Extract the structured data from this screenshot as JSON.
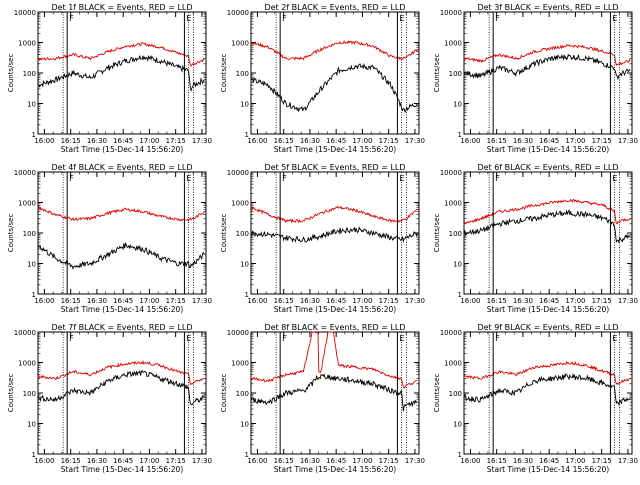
{
  "figure": {
    "x_start_label": "Start Time (15-Dec-14 15:56:20)",
    "y_label": "Counts/sec",
    "event_color": "#000000",
    "lld_color": "#e00000",
    "marker_labels": [
      "F",
      "E"
    ]
  },
  "chart_data": [
    {
      "type": "line",
      "title": "Det 1f BLACK = Events, RED = LLD",
      "xlabel": "Start Time (15-Dec-14 15:56:20)",
      "ylabel": "Counts/sec",
      "y_scale": "log",
      "x_ticks": [
        "16:00",
        "16:15",
        "16:30",
        "16:45",
        "17:00",
        "17:15",
        "17:30"
      ],
      "y_ticks": [
        "1",
        "10",
        "100",
        "1000",
        "10000"
      ],
      "ylim": [
        1,
        10000
      ],
      "x_minutes": [
        0,
        10,
        20,
        30,
        40,
        50,
        60,
        70,
        80,
        86,
        87,
        89,
        95
      ],
      "markers": [
        {
          "time": "16:13",
          "label": "F"
        },
        {
          "time": "17:20",
          "label": "E"
        }
      ],
      "series": [
        {
          "name": "Events",
          "color": "#000000",
          "values": [
            40,
            60,
            100,
            70,
            150,
            250,
            350,
            250,
            150,
            120,
            30,
            40,
            60
          ]
        },
        {
          "name": "LLD",
          "color": "#e00000",
          "values": [
            280,
            300,
            400,
            300,
            500,
            750,
            900,
            700,
            450,
            350,
            180,
            200,
            280
          ]
        }
      ]
    },
    {
      "type": "line",
      "title": "Det 2f BLACK = Events, RED = LLD",
      "xlabel": "Start Time (15-Dec-14 15:56:20)",
      "ylabel": "Counts/sec",
      "y_scale": "log",
      "x_ticks": [
        "16:00",
        "16:15",
        "16:30",
        "16:45",
        "17:00",
        "17:15",
        "17:30"
      ],
      "y_ticks": [
        "1",
        "10",
        "100",
        "1000",
        "10000"
      ],
      "ylim": [
        1,
        10000
      ],
      "x_minutes": [
        0,
        10,
        20,
        30,
        40,
        50,
        60,
        70,
        80,
        86,
        87,
        89,
        95
      ],
      "markers": [
        {
          "time": "16:13",
          "label": "F"
        },
        {
          "time": "17:20",
          "label": "E"
        }
      ],
      "series": [
        {
          "name": "Events",
          "color": "#000000",
          "values": [
            60,
            40,
            10,
            6,
            30,
            120,
            170,
            150,
            40,
            8,
            6,
            7,
            10
          ]
        },
        {
          "name": "LLD",
          "color": "#e00000",
          "values": [
            1000,
            700,
            300,
            300,
            600,
            1000,
            1000,
            750,
            350,
            300,
            300,
            320,
            600
          ]
        }
      ]
    },
    {
      "type": "line",
      "title": "Det 3f BLACK = Events, RED = LLD",
      "xlabel": "Start Time (15-Dec-14 15:56:20)",
      "ylabel": "Counts/sec",
      "y_scale": "log",
      "x_ticks": [
        "16:00",
        "16:15",
        "16:30",
        "16:45",
        "17:00",
        "17:15",
        "17:30"
      ],
      "y_ticks": [
        "1",
        "10",
        "100",
        "1000",
        "10000"
      ],
      "ylim": [
        1,
        10000
      ],
      "x_minutes": [
        0,
        10,
        20,
        30,
        40,
        50,
        60,
        70,
        80,
        86,
        87,
        89,
        95
      ],
      "markers": [
        {
          "time": "16:13",
          "label": "F"
        },
        {
          "time": "17:20",
          "label": "E"
        }
      ],
      "series": [
        {
          "name": "Events",
          "color": "#000000",
          "values": [
            100,
            80,
            150,
            100,
            200,
            300,
            350,
            300,
            200,
            150,
            70,
            90,
            120
          ]
        },
        {
          "name": "LLD",
          "color": "#e00000",
          "values": [
            300,
            250,
            400,
            300,
            500,
            650,
            800,
            700,
            500,
            400,
            180,
            200,
            250
          ]
        }
      ]
    },
    {
      "type": "line",
      "title": "Det 4f BLACK = Events, RED = LLD",
      "xlabel": "Start Time (15-Dec-14 15:56:20)",
      "ylabel": "Counts/sec",
      "y_scale": "log",
      "x_ticks": [
        "16:00",
        "16:15",
        "16:30",
        "16:45",
        "17:00",
        "17:15",
        "17:30"
      ],
      "y_ticks": [
        "1",
        "10",
        "100",
        "1000",
        "10000"
      ],
      "ylim": [
        1,
        10000
      ],
      "x_minutes": [
        0,
        10,
        20,
        30,
        40,
        50,
        60,
        70,
        80,
        86,
        87,
        89,
        95
      ],
      "markers": [
        {
          "time": "16:13",
          "label": "F"
        },
        {
          "time": "17:20",
          "label": "E"
        }
      ],
      "series": [
        {
          "name": "Events",
          "color": "#000000",
          "values": [
            40,
            15,
            8,
            10,
            20,
            40,
            30,
            15,
            10,
            10,
            8,
            10,
            20
          ]
        },
        {
          "name": "LLD",
          "color": "#e00000",
          "values": [
            700,
            400,
            280,
            300,
            450,
            600,
            500,
            350,
            280,
            270,
            280,
            300,
            500
          ]
        }
      ]
    },
    {
      "type": "line",
      "title": "Det 5f BLACK = Events, RED = LLD",
      "xlabel": "Start Time (15-Dec-14 15:56:20)",
      "ylabel": "Counts/sec",
      "y_scale": "log",
      "x_ticks": [
        "16:00",
        "16:15",
        "16:30",
        "16:45",
        "17:00",
        "17:15",
        "17:30"
      ],
      "y_ticks": [
        "1",
        "10",
        "100",
        "1000",
        "10000"
      ],
      "ylim": [
        1,
        10000
      ],
      "x_minutes": [
        0,
        10,
        20,
        30,
        40,
        50,
        60,
        70,
        80,
        86,
        87,
        89,
        95
      ],
      "markers": [
        {
          "time": "16:13",
          "label": "F"
        },
        {
          "time": "17:20",
          "label": "E"
        }
      ],
      "series": [
        {
          "name": "Events",
          "color": "#000000",
          "values": [
            100,
            90,
            70,
            60,
            80,
            120,
            130,
            100,
            70,
            60,
            60,
            70,
            100
          ]
        },
        {
          "name": "LLD",
          "color": "#e00000",
          "values": [
            700,
            400,
            250,
            250,
            450,
            700,
            550,
            350,
            250,
            250,
            270,
            300,
            600
          ]
        }
      ]
    },
    {
      "type": "line",
      "title": "Det 6f BLACK = Events, RED = LLD",
      "xlabel": "Start Time (15-Dec-14 15:56:20)",
      "ylabel": "Counts/sec",
      "y_scale": "log",
      "x_ticks": [
        "16:00",
        "16:15",
        "16:30",
        "16:45",
        "17:00",
        "17:15",
        "17:30"
      ],
      "y_ticks": [
        "1",
        "10",
        "100",
        "1000",
        "10000"
      ],
      "ylim": [
        1,
        10000
      ],
      "x_minutes": [
        0,
        10,
        20,
        30,
        40,
        50,
        60,
        70,
        80,
        86,
        87,
        89,
        95
      ],
      "markers": [
        {
          "time": "16:13",
          "label": "F"
        },
        {
          "time": "17:20",
          "label": "E"
        }
      ],
      "series": [
        {
          "name": "Events",
          "color": "#000000",
          "values": [
            100,
            120,
            200,
            250,
            300,
            400,
            450,
            400,
            300,
            200,
            50,
            60,
            80
          ]
        },
        {
          "name": "LLD",
          "color": "#e00000",
          "values": [
            200,
            300,
            500,
            600,
            800,
            1000,
            1200,
            1000,
            800,
            500,
            200,
            250,
            300
          ]
        }
      ]
    },
    {
      "type": "line",
      "title": "Det 7f BLACK = Events, RED = LLD",
      "xlabel": "Start Time (15-Dec-14 15:56:20)",
      "ylabel": "Counts/sec",
      "y_scale": "log",
      "x_ticks": [
        "16:00",
        "16:15",
        "16:30",
        "16:45",
        "17:00",
        "17:15",
        "17:30"
      ],
      "y_ticks": [
        "1",
        "10",
        "100",
        "1000",
        "10000"
      ],
      "ylim": [
        1,
        10000
      ],
      "x_minutes": [
        0,
        10,
        20,
        30,
        40,
        50,
        60,
        70,
        80,
        86,
        87,
        89,
        95
      ],
      "markers": [
        {
          "time": "16:13",
          "label": "F"
        },
        {
          "time": "17:20",
          "label": "E"
        }
      ],
      "series": [
        {
          "name": "Events",
          "color": "#000000",
          "values": [
            70,
            60,
            120,
            100,
            250,
            400,
            450,
            300,
            200,
            150,
            40,
            50,
            70
          ]
        },
        {
          "name": "LLD",
          "color": "#e00000",
          "values": [
            350,
            300,
            500,
            400,
            700,
            900,
            1000,
            800,
            500,
            400,
            200,
            220,
            300
          ]
        }
      ]
    },
    {
      "type": "line",
      "title": "Det 8f BLACK = Events, RED = LLD",
      "xlabel": "Start Time (15-Dec-14 15:56:20)",
      "ylabel": "Counts/sec",
      "y_scale": "log",
      "x_ticks": [
        "16:00",
        "16:15",
        "16:30",
        "16:45",
        "17:00",
        "17:15",
        "17:30"
      ],
      "y_ticks": [
        "1",
        "10",
        "100",
        "1000",
        "10000"
      ],
      "ylim": [
        1,
        10000
      ],
      "x_minutes": [
        0,
        10,
        20,
        30,
        35,
        37,
        40,
        44,
        47,
        50,
        60,
        70,
        80,
        86,
        87,
        89,
        95
      ],
      "markers": [
        {
          "time": "16:13",
          "label": "F"
        },
        {
          "time": "17:20",
          "label": "E"
        }
      ],
      "series": [
        {
          "name": "Events",
          "color": "#000000",
          "values": [
            60,
            50,
            100,
            120,
            200,
            300,
            350,
            350,
            300,
            300,
            250,
            200,
            120,
            100,
            30,
            40,
            50
          ]
        },
        {
          "name": "LLD",
          "color": "#e00000",
          "values": [
            300,
            250,
            400,
            500,
            10000,
            10000,
            500,
            10000,
            10000,
            800,
            700,
            600,
            350,
            300,
            150,
            180,
            250
          ]
        }
      ]
    },
    {
      "type": "line",
      "title": "Det 9f BLACK = Events, RED = LLD",
      "xlabel": "Start Time (15-Dec-14 15:56:20)",
      "ylabel": "Counts/sec",
      "y_scale": "log",
      "x_ticks": [
        "16:00",
        "16:15",
        "16:30",
        "16:45",
        "17:00",
        "17:15",
        "17:30"
      ],
      "y_ticks": [
        "1",
        "10",
        "100",
        "1000",
        "10000"
      ],
      "ylim": [
        1,
        10000
      ],
      "x_minutes": [
        0,
        10,
        20,
        30,
        40,
        50,
        60,
        70,
        80,
        86,
        87,
        89,
        95
      ],
      "markers": [
        {
          "time": "16:13",
          "label": "F"
        },
        {
          "time": "17:20",
          "label": "E"
        }
      ],
      "series": [
        {
          "name": "Events",
          "color": "#000000",
          "values": [
            70,
            60,
            120,
            100,
            250,
            300,
            350,
            300,
            200,
            150,
            40,
            50,
            70
          ]
        },
        {
          "name": "LLD",
          "color": "#e00000",
          "values": [
            350,
            300,
            500,
            400,
            700,
            800,
            1000,
            800,
            500,
            400,
            200,
            220,
            300
          ]
        }
      ]
    }
  ]
}
